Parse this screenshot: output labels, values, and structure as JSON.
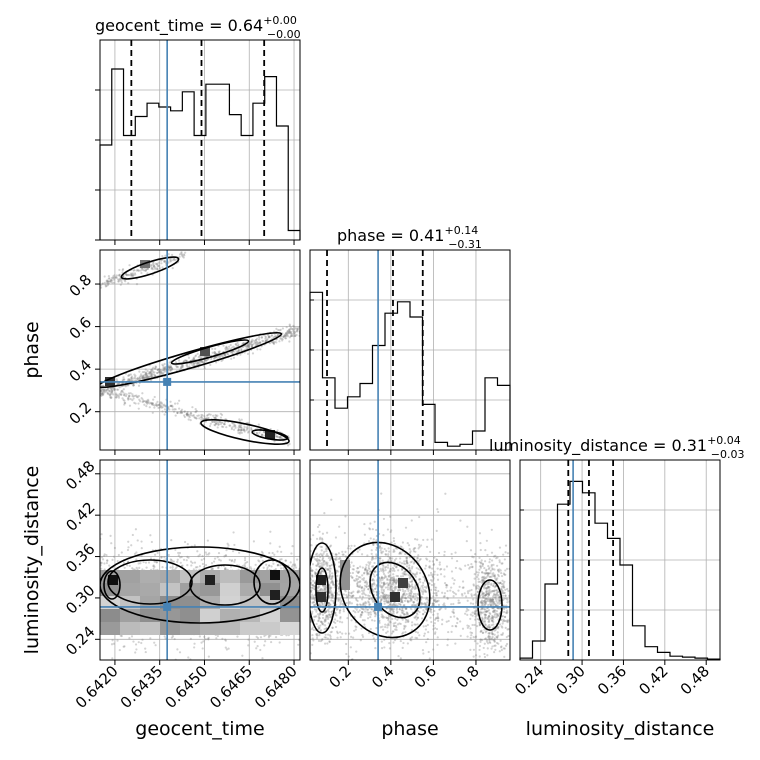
{
  "chart_data": {
    "type": "corner",
    "parameters": [
      {
        "name": "geocent_time",
        "truth": 0.64375,
        "range": [
          0.6415,
          0.6482
        ],
        "ticks": [
          "0.6420",
          "0.6435",
          "0.6450",
          "0.6465",
          "0.6480"
        ],
        "tick_values": [
          0.642,
          0.6435,
          0.645,
          0.6465,
          0.648
        ],
        "quantiles": [
          0.64255,
          0.6449,
          0.647
        ]
      },
      {
        "name": "phase",
        "truth": 0.34,
        "range": [
          0.02,
          0.96
        ],
        "ticks": [
          "0.2",
          "0.4",
          "0.6",
          "0.8"
        ],
        "tick_values": [
          0.2,
          0.4,
          0.6,
          0.8
        ],
        "quantiles": [
          0.1,
          0.41,
          0.55
        ]
      },
      {
        "name": "luminosity_distance",
        "truth": 0.287,
        "range": [
          0.21,
          0.5
        ],
        "ticks": [
          "0.24",
          "0.30",
          "0.36",
          "0.42",
          "0.48"
        ],
        "tick_values": [
          0.24,
          0.3,
          0.36,
          0.42,
          0.48
        ],
        "quantiles": [
          0.28,
          0.31,
          0.345
        ]
      }
    ],
    "titles": [
      {
        "base": "geocent_time = 0.64",
        "plus": "+0.00",
        "minus": "−0.00"
      },
      {
        "base": "phase = 0.41",
        "plus": "+0.14",
        "minus": "−0.31"
      },
      {
        "base": "luminosity_distance = 0.31",
        "plus": "+0.04",
        "minus": "−0.03"
      }
    ],
    "histograms": [
      {
        "param": "geocent_time",
        "heights": [
          0.5,
          0.9,
          0.55,
          0.65,
          0.72,
          0.7,
          0.68,
          0.78,
          0.55,
          0.82,
          0.82,
          0.66,
          0.55,
          0.72,
          0.86,
          0.6,
          0.05
        ]
      },
      {
        "param": "phase",
        "heights": [
          0.83,
          0.38,
          0.22,
          0.28,
          0.35,
          0.55,
          0.72,
          0.78,
          0.7,
          0.24,
          0.04,
          0.02,
          0.03,
          0.1,
          0.38,
          0.34
        ]
      },
      {
        "param": "luminosity_distance",
        "heights": [
          0.01,
          0.1,
          0.4,
          0.82,
          0.94,
          0.88,
          0.72,
          0.64,
          0.5,
          0.18,
          0.07,
          0.04,
          0.02,
          0.015,
          0.01,
          0.005
        ]
      }
    ],
    "truth_color": "#4682b4",
    "hist_color": "#000000",
    "grid": true
  }
}
